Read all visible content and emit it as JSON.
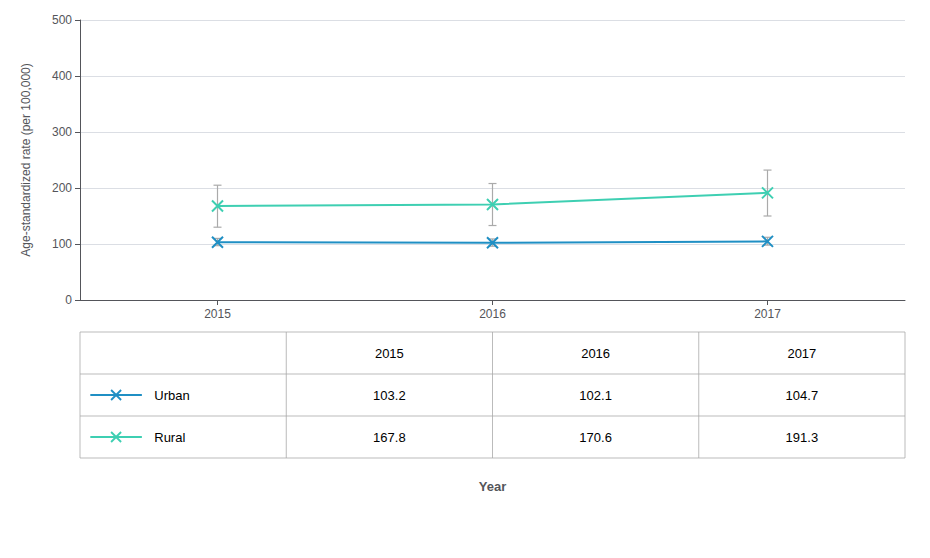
{
  "chart_data": {
    "type": "line",
    "ylabel": "Age-standardized rate (per 100,000)",
    "xlabel": "Year",
    "x": [
      2015,
      2016,
      2017
    ],
    "xlim": [
      2014.5,
      2017.5
    ],
    "xticks": [
      2015,
      2016,
      2017
    ],
    "ylim": [
      0,
      500
    ],
    "yticks": [
      0,
      100,
      200,
      300,
      400,
      500
    ],
    "grid": true,
    "marker": "x",
    "series": [
      {
        "name": "Urban",
        "color": "#1f8fc4",
        "values": [
          103.2,
          102.1,
          104.7
        ],
        "ci_lower": [
          97.0,
          96.0,
          98.0
        ],
        "ci_upper": [
          110.0,
          109.0,
          112.0
        ]
      },
      {
        "name": "Rural",
        "color": "#3ecfb2",
        "values": [
          167.8,
          170.6,
          191.3
        ],
        "ci_lower": [
          130.0,
          133.0,
          150.0
        ],
        "ci_upper": [
          205.0,
          208.0,
          232.0
        ]
      }
    ]
  }
}
